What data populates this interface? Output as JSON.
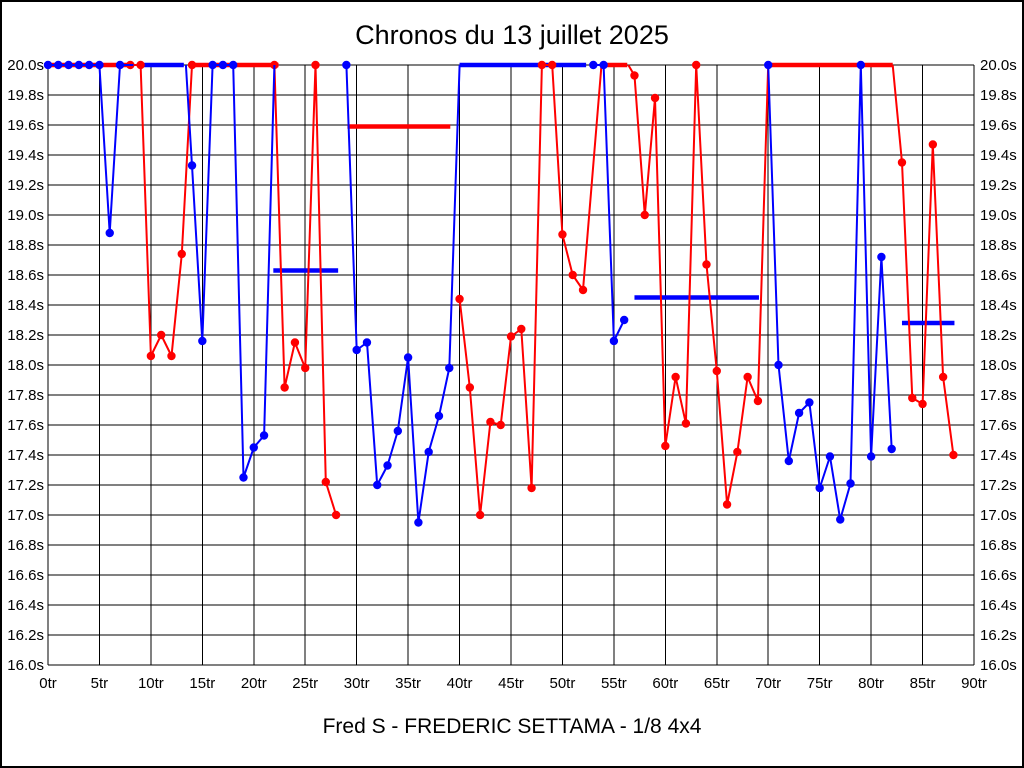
{
  "page": {
    "title": "Chronos du 13 juillet 2025",
    "subtitle": "Fred S - FREDERIC SETTAMA - 1/8 4x4"
  },
  "chart_data": {
    "type": "line",
    "title": "Chronos du 13 juillet 2025",
    "subtitle": "Fred S - FREDERIC SETTAMA - 1/8 4x4",
    "x_unit": "tr",
    "y_unit": "s",
    "xlim": [
      0,
      90
    ],
    "ylim": [
      16.0,
      20.0
    ],
    "clip_max": 20.0,
    "grid": "on",
    "legend": "none",
    "x_tick_values": [
      0,
      5,
      10,
      15,
      20,
      25,
      30,
      35,
      40,
      45,
      50,
      55,
      60,
      65,
      70,
      75,
      80,
      85,
      90
    ],
    "x_tick_labels": [
      "0tr",
      "5tr",
      "10tr",
      "15tr",
      "20tr",
      "25tr",
      "30tr",
      "35tr",
      "40tr",
      "45tr",
      "50tr",
      "55tr",
      "60tr",
      "65tr",
      "70tr",
      "75tr",
      "80tr",
      "85tr",
      "90tr"
    ],
    "y_tick_values": [
      20.0,
      19.8,
      19.6,
      19.4,
      19.2,
      19.0,
      18.8,
      18.6,
      18.4,
      18.2,
      18.0,
      17.8,
      17.6,
      17.4,
      17.2,
      17.0,
      16.8,
      16.6,
      16.4,
      16.2,
      16.0
    ],
    "y_tick_labels": [
      "20.0s",
      "19.8s",
      "19.6s",
      "19.4s",
      "19.2s",
      "19.0s",
      "18.8s",
      "18.6s",
      "18.4s",
      "18.2s",
      "18.0s",
      "17.8s",
      "17.6s",
      "17.4s",
      "17.2s",
      "17.0s",
      "16.8s",
      "16.6s",
      "16.4s",
      "16.2s",
      "16.0s"
    ],
    "colors": {
      "red_series": "#ff0000",
      "blue_series": "#0000ff",
      "grid": "#000000",
      "background": "#ffffff",
      "text": "#000000"
    },
    "series": [
      {
        "name": "red",
        "color": "#ff0000",
        "runs": [
          [
            [
              8,
              20.0,
              1
            ],
            [
              9,
              20.0,
              1
            ],
            [
              10,
              18.06,
              1
            ],
            [
              11,
              18.2,
              1
            ],
            [
              12,
              18.06,
              1
            ],
            [
              13,
              18.74,
              1
            ],
            [
              14,
              20.0,
              1
            ]
          ],
          [
            [
              22,
              20.0,
              1
            ],
            [
              23,
              17.85,
              1
            ],
            [
              24,
              18.15,
              1
            ],
            [
              25,
              17.98,
              1
            ],
            [
              26,
              20.0,
              1
            ],
            [
              27,
              17.22,
              1
            ],
            [
              28,
              17.0,
              1
            ]
          ],
          [
            [
              40,
              18.44,
              1
            ],
            [
              41,
              17.85,
              1
            ],
            [
              42,
              17.0,
              1
            ],
            [
              43,
              17.62,
              1
            ],
            [
              44,
              17.6,
              1
            ],
            [
              45,
              18.19,
              1
            ],
            [
              46,
              18.24,
              1
            ],
            [
              47,
              17.18,
              1
            ],
            [
              48,
              20.0,
              1
            ],
            [
              49,
              20.0,
              1
            ],
            [
              50,
              18.87,
              1
            ],
            [
              51,
              18.6,
              1
            ],
            [
              52,
              18.5,
              1
            ],
            [
              53.8,
              20.0,
              0
            ]
          ],
          [
            [
              56.4,
              20.0,
              0
            ],
            [
              57,
              19.93,
              1
            ],
            [
              58,
              19.0,
              1
            ],
            [
              59,
              19.78,
              1
            ],
            [
              60,
              17.46,
              1
            ],
            [
              61,
              17.92,
              1
            ],
            [
              62,
              17.61,
              1
            ],
            [
              63,
              20.0,
              1
            ],
            [
              64,
              18.67,
              1
            ],
            [
              65,
              17.96,
              1
            ],
            [
              66,
              17.07,
              1
            ],
            [
              67,
              17.42,
              1
            ],
            [
              68,
              17.92,
              1
            ],
            [
              69,
              17.76,
              1
            ],
            [
              70,
              20.0,
              0
            ]
          ],
          [
            [
              82.1,
              20.0,
              0
            ],
            [
              83,
              19.35,
              1
            ],
            [
              84,
              17.78,
              1
            ],
            [
              85,
              17.74,
              1
            ],
            [
              86,
              19.47,
              1
            ],
            [
              87,
              17.92,
              1
            ],
            [
              88,
              17.4,
              1
            ]
          ]
        ]
      },
      {
        "name": "blue",
        "color": "#0000ff",
        "runs": [
          [
            [
              0,
              20.0,
              1
            ],
            [
              1,
              20.0,
              1
            ],
            [
              2,
              20.0,
              1
            ],
            [
              3,
              20.0,
              1
            ],
            [
              4,
              20.0,
              1
            ],
            [
              5,
              20.0,
              1
            ],
            [
              6,
              18.88,
              1
            ],
            [
              7,
              20.0,
              1
            ],
            [
              8.3,
              20.0,
              0
            ]
          ],
          [
            [
              13.4,
              20.0,
              0
            ],
            [
              14,
              19.33,
              1
            ],
            [
              15,
              18.16,
              1
            ],
            [
              16,
              20.0,
              1
            ],
            [
              17,
              20.0,
              1
            ],
            [
              18,
              20.0,
              1
            ],
            [
              19,
              17.25,
              1
            ],
            [
              20,
              17.45,
              1
            ],
            [
              21,
              17.53,
              1
            ],
            [
              22,
              20.0,
              0
            ]
          ],
          [
            [
              29,
              20.0,
              1
            ],
            [
              30,
              18.1,
              1
            ],
            [
              31,
              18.15,
              1
            ],
            [
              32,
              17.2,
              1
            ],
            [
              33,
              17.33,
              1
            ],
            [
              34,
              17.56,
              1
            ],
            [
              35,
              18.05,
              1
            ],
            [
              36,
              16.95,
              1
            ],
            [
              37,
              17.42,
              1
            ],
            [
              38,
              17.66,
              1
            ],
            [
              39,
              17.98,
              1
            ],
            [
              40,
              20.0,
              0
            ]
          ],
          [
            [
              53,
              20.0,
              1
            ],
            [
              54,
              20.0,
              1
            ],
            [
              55,
              18.16,
              1
            ],
            [
              56,
              18.3,
              1
            ]
          ],
          [
            [
              70,
              20.0,
              1
            ],
            [
              71,
              18.0,
              1
            ],
            [
              72,
              17.36,
              1
            ],
            [
              73,
              17.68,
              1
            ],
            [
              74,
              17.75,
              1
            ],
            [
              75,
              17.18,
              1
            ],
            [
              76,
              17.39,
              1
            ],
            [
              77,
              16.97,
              1
            ],
            [
              78,
              17.21,
              1
            ],
            [
              79,
              20.0,
              1
            ],
            [
              80,
              17.39,
              1
            ],
            [
              81,
              18.72,
              1
            ],
            [
              82,
              17.44,
              1
            ]
          ]
        ]
      }
    ],
    "average_segments": [
      {
        "series": "red",
        "value": 20.0,
        "from": 0.0,
        "to": 8.3
      },
      {
        "series": "blue",
        "value": 20.0,
        "from": 8.7,
        "to": 13.2
      },
      {
        "series": "red",
        "value": 20.0,
        "from": 14.0,
        "to": 22.4
      },
      {
        "series": "blue",
        "value": 18.63,
        "from": 21.9,
        "to": 28.2
      },
      {
        "series": "red",
        "value": 19.59,
        "from": 29.1,
        "to": 39.1
      },
      {
        "series": "blue",
        "value": 20.0,
        "from": 40.0,
        "to": 52.3
      },
      {
        "series": "red",
        "value": 20.0,
        "from": 54.1,
        "to": 56.3
      },
      {
        "series": "blue",
        "value": 18.45,
        "from": 57.0,
        "to": 69.1
      },
      {
        "series": "red",
        "value": 20.0,
        "from": 70.0,
        "to": 82.1
      },
      {
        "series": "blue",
        "value": 18.28,
        "from": 83.0,
        "to": 88.1
      }
    ]
  }
}
